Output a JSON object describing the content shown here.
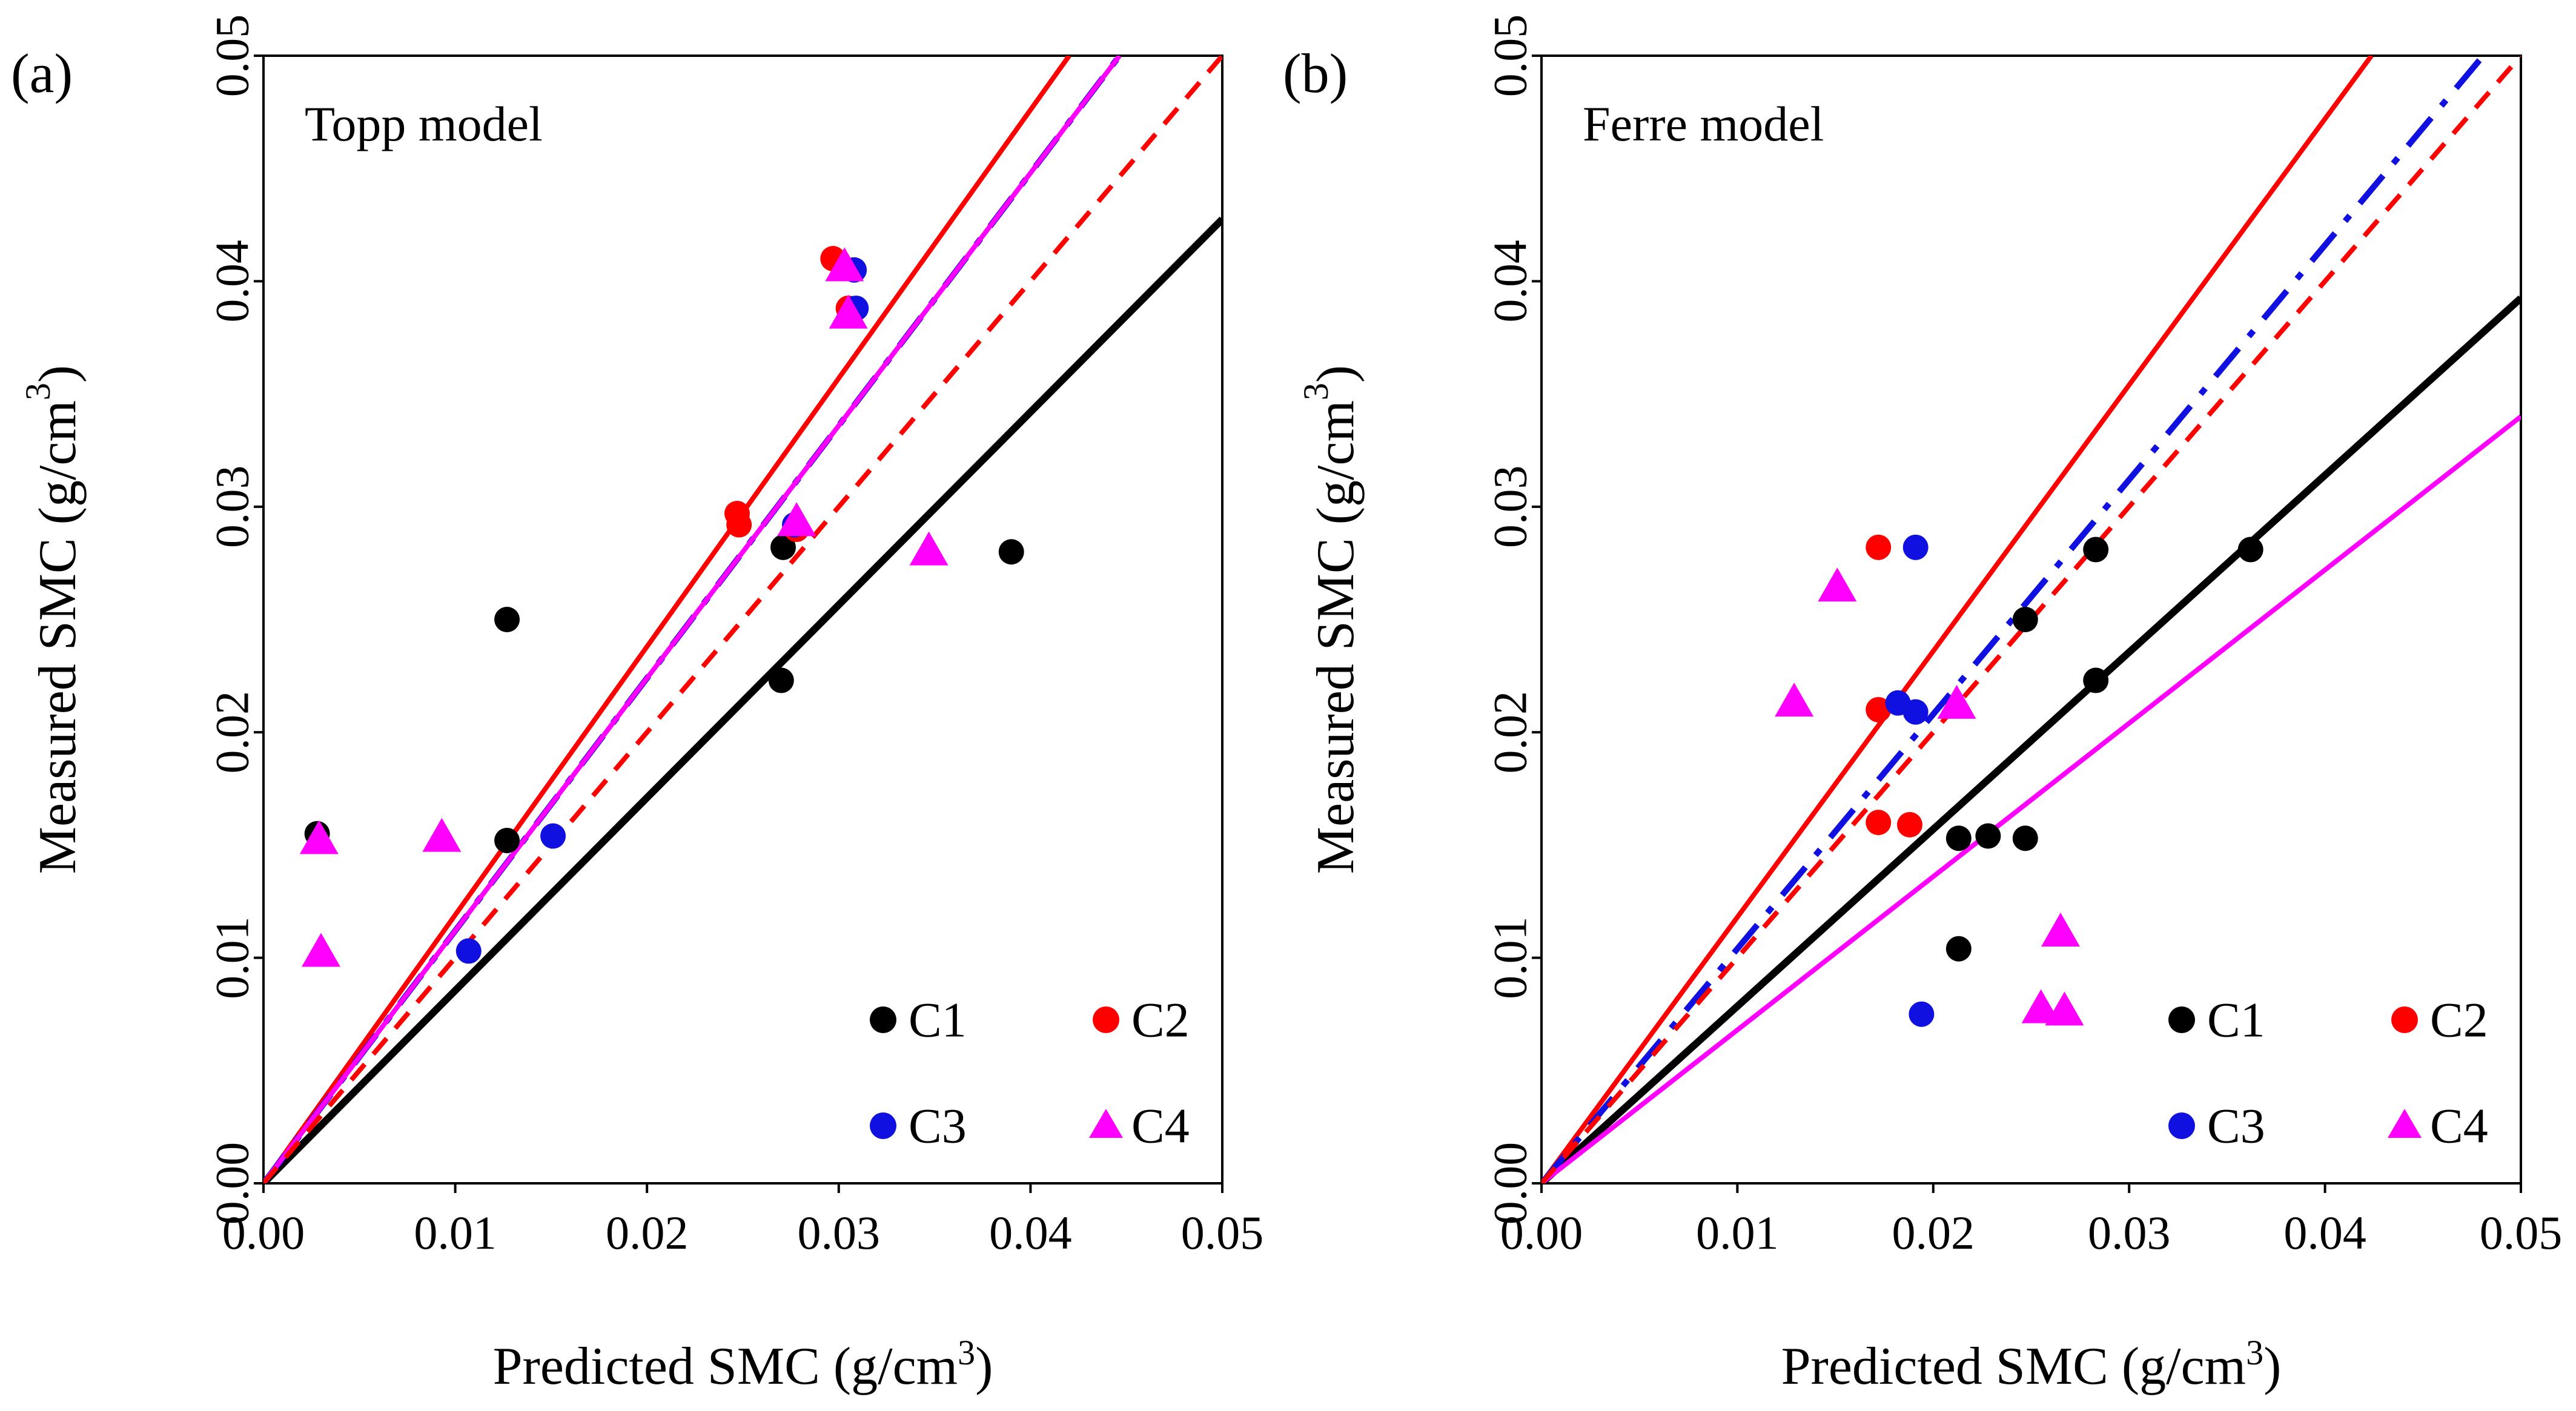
{
  "chart_data": [
    {
      "type": "scatter",
      "panel_label": "(a)",
      "title": "Topp model",
      "xlabel": "Predicted SMC (g/cm",
      "ylabel": "Measured SMC (g/cm",
      "unit_exponent": "3",
      "unit_close": ")",
      "xlim": [
        0,
        0.05
      ],
      "ylim": [
        0,
        0.05
      ],
      "xticks": [
        "0.00",
        "0.01",
        "0.02",
        "0.03",
        "0.04",
        "0.05"
      ],
      "yticks": [
        "0.00",
        "0.01",
        "0.02",
        "0.03",
        "0.04",
        "0.05"
      ],
      "legend_position": "bottom-right",
      "series": [
        {
          "name": "C1",
          "color": "#000000",
          "marker": "circle",
          "points": [
            [
              0.0028,
              0.0155
            ],
            [
              0.0127,
              0.025
            ],
            [
              0.0127,
              0.0152
            ],
            [
              0.0271,
              0.0282
            ],
            [
              0.027,
              0.0223
            ],
            [
              0.039,
              0.028
            ]
          ]
        },
        {
          "name": "C2",
          "color": "#ff0000",
          "marker": "circle",
          "points": [
            [
              0.0247,
              0.0297
            ],
            [
              0.0248,
              0.0292
            ],
            [
              0.0297,
              0.041
            ],
            [
              0.0305,
              0.0388
            ],
            [
              0.0278,
              0.029
            ]
          ]
        },
        {
          "name": "C3",
          "color": "#1010e0",
          "marker": "circle",
          "points": [
            [
              0.0107,
              0.0103
            ],
            [
              0.0151,
              0.0154
            ],
            [
              0.0308,
              0.0405
            ],
            [
              0.0309,
              0.0388
            ],
            [
              0.0277,
              0.0292
            ]
          ]
        },
        {
          "name": "C4",
          "color": "#ff00ff",
          "marker": "triangle",
          "points": [
            [
              0.0029,
              0.0152
            ],
            [
              0.003,
              0.0102
            ],
            [
              0.0093,
              0.0153
            ],
            [
              0.0278,
              0.0293
            ],
            [
              0.0303,
              0.0406
            ],
            [
              0.0305,
              0.0385
            ],
            [
              0.0347,
              0.028
            ]
          ]
        }
      ],
      "fit_lines": [
        {
          "series": "C1",
          "color": "#000000",
          "style": "solid",
          "slope": 0.855
        },
        {
          "series": "C2",
          "color": "#ff0000",
          "style": "solid",
          "slope": 1.19
        },
        {
          "series": "C3",
          "color": "#1010e0",
          "style": "dashdot",
          "slope": 1.12
        },
        {
          "series": "C4",
          "color": "#ff00ff",
          "style": "solid",
          "slope": 1.12
        },
        {
          "series": "1:1",
          "color": "#ff0000",
          "style": "dashed",
          "slope": 1.0
        }
      ]
    },
    {
      "type": "scatter",
      "panel_label": "(b)",
      "title": "Ferre model",
      "xlabel": "Predicted SMC (g/cm",
      "ylabel": "Measured SMC (g/cm",
      "unit_exponent": "3",
      "unit_close": ")",
      "xlim": [
        0,
        0.05
      ],
      "ylim": [
        0,
        0.05
      ],
      "xticks": [
        "0.00",
        "0.01",
        "0.02",
        "0.03",
        "0.04",
        "0.05"
      ],
      "yticks": [
        "0.00",
        "0.01",
        "0.02",
        "0.03",
        "0.04",
        "0.05"
      ],
      "legend_position": "bottom-right",
      "series": [
        {
          "name": "C1",
          "color": "#000000",
          "marker": "circle",
          "points": [
            [
              0.0213,
              0.0153
            ],
            [
              0.0228,
              0.0154
            ],
            [
              0.0247,
              0.0153
            ],
            [
              0.0213,
              0.0104
            ],
            [
              0.0247,
              0.025
            ],
            [
              0.0283,
              0.0281
            ],
            [
              0.0283,
              0.0223
            ],
            [
              0.0362,
              0.0281
            ]
          ]
        },
        {
          "name": "C2",
          "color": "#ff0000",
          "marker": "circle",
          "points": [
            [
              0.0172,
              0.0282
            ],
            [
              0.0172,
              0.021
            ],
            [
              0.0172,
              0.016
            ],
            [
              0.0188,
              0.0159
            ]
          ]
        },
        {
          "name": "C3",
          "color": "#1010e0",
          "marker": "circle",
          "points": [
            [
              0.0191,
              0.0282
            ],
            [
              0.0182,
              0.0213
            ],
            [
              0.0191,
              0.0209
            ],
            [
              0.0194,
              0.0075
            ]
          ]
        },
        {
          "name": "C4",
          "color": "#ff00ff",
          "marker": "triangle",
          "points": [
            [
              0.0151,
              0.0264
            ],
            [
              0.0129,
              0.0213
            ],
            [
              0.0212,
              0.0212
            ],
            [
              0.0265,
              0.0111
            ],
            [
              0.0255,
              0.0077
            ],
            [
              0.0267,
              0.0076
            ]
          ]
        }
      ],
      "fit_lines": [
        {
          "series": "C1",
          "color": "#000000",
          "style": "solid",
          "slope": 0.785
        },
        {
          "series": "C2",
          "color": "#ff0000",
          "style": "solid",
          "slope": 1.18
        },
        {
          "series": "C3",
          "color": "#1010e0",
          "style": "dashdot",
          "slope": 1.04
        },
        {
          "series": "C4",
          "color": "#ff00ff",
          "style": "solid",
          "slope": 0.68
        },
        {
          "series": "1:1",
          "color": "#ff0000",
          "style": "dashed",
          "slope": 1.0
        }
      ]
    }
  ]
}
